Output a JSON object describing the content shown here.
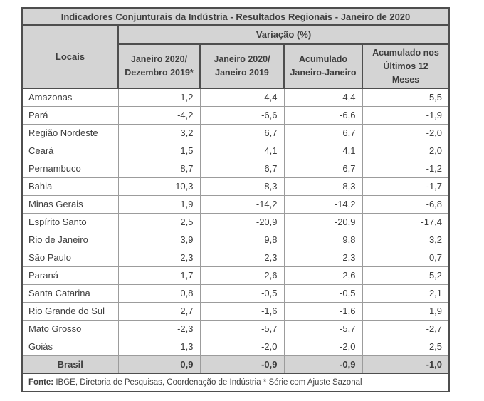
{
  "colors": {
    "header_bg": "#d4d4d4",
    "border_dark": "#4e4e4e",
    "border_light": "#9c9c9c",
    "text": "#3d3d3d",
    "page_bg": "#ffffff"
  },
  "chart_data": {
    "type": "table",
    "title": "Indicadores Conjunturais da Indústria - Resultados Regionais - Janeiro de 2020",
    "group_header": "Variação (%)",
    "row_header": "Locais",
    "columns": [
      "Janeiro 2020/\nDezembro 2019*",
      "Janeiro 2020/\nJaneiro 2019",
      "Acumulado\nJaneiro-Janeiro",
      "Acumulado nos\nÚltimos 12\nMeses"
    ],
    "rows": [
      {
        "label": "Amazonas",
        "values": [
          "1,2",
          "4,4",
          "4,4",
          "5,5"
        ]
      },
      {
        "label": "Pará",
        "values": [
          "-4,2",
          "-6,6",
          "-6,6",
          "-1,9"
        ]
      },
      {
        "label": "Região Nordeste",
        "values": [
          "3,2",
          "6,7",
          "6,7",
          "-2,0"
        ]
      },
      {
        "label": "Ceará",
        "values": [
          "1,5",
          "4,1",
          "4,1",
          "2,0"
        ]
      },
      {
        "label": "Pernambuco",
        "values": [
          "8,7",
          "6,7",
          "6,7",
          "-1,2"
        ]
      },
      {
        "label": "Bahia",
        "values": [
          "10,3",
          "8,3",
          "8,3",
          "-1,7"
        ]
      },
      {
        "label": "Minas Gerais",
        "values": [
          "1,9",
          "-14,2",
          "-14,2",
          "-6,8"
        ]
      },
      {
        "label": "Espírito Santo",
        "values": [
          "2,5",
          "-20,9",
          "-20,9",
          "-17,4"
        ]
      },
      {
        "label": "Rio de Janeiro",
        "values": [
          "3,9",
          "9,8",
          "9,8",
          "3,2"
        ]
      },
      {
        "label": "São Paulo",
        "values": [
          "2,3",
          "2,3",
          "2,3",
          "0,7"
        ]
      },
      {
        "label": "Paraná",
        "values": [
          "1,7",
          "2,6",
          "2,6",
          "5,2"
        ]
      },
      {
        "label": "Santa Catarina",
        "values": [
          "0,8",
          "-0,5",
          "-0,5",
          "2,1"
        ]
      },
      {
        "label": "Rio Grande do Sul",
        "values": [
          "2,7",
          "-1,6",
          "-1,6",
          "1,9"
        ]
      },
      {
        "label": "Mato Grosso",
        "values": [
          "-2,3",
          "-5,7",
          "-5,7",
          "-2,7"
        ]
      },
      {
        "label": "Goiás",
        "values": [
          "1,3",
          "-2,0",
          "-2,0",
          "2,5"
        ]
      }
    ],
    "total": {
      "label": "Brasil",
      "values": [
        "0,9",
        "-0,9",
        "-0,9",
        "-1,0"
      ]
    },
    "footnote_label": "Fonte:",
    "footnote_text": " IBGE, Diretoria de Pesquisas, Coordenação de Indústria * Série com Ajuste Sazonal"
  }
}
